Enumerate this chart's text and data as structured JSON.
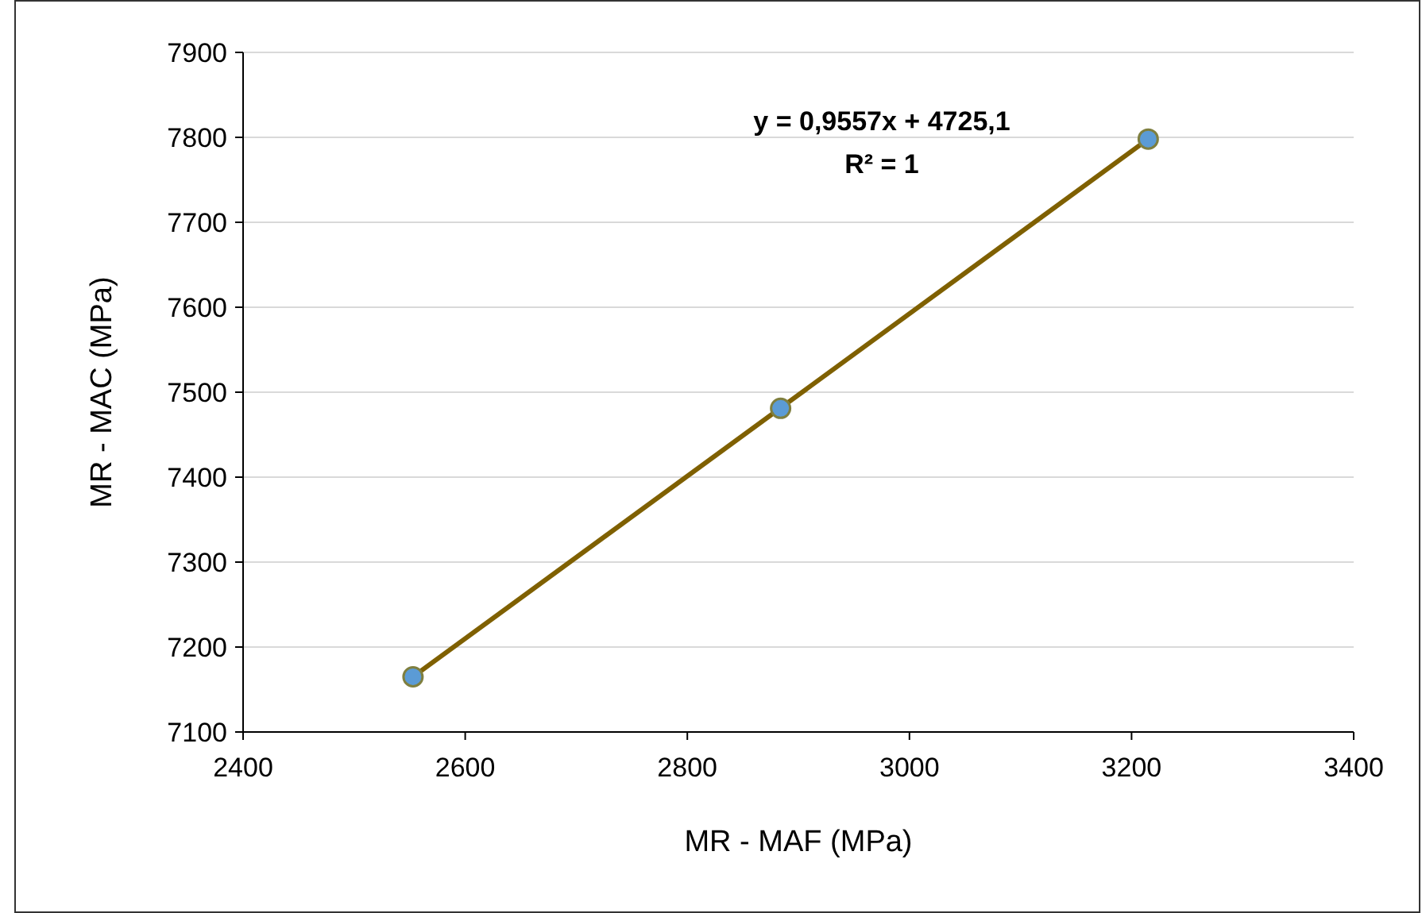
{
  "chart_data": {
    "type": "scatter",
    "xlabel": "MR - MAF (MPa)",
    "ylabel": "MR - MAC (MPa)",
    "xlim": [
      2400,
      3400
    ],
    "xticks": [
      2400,
      2600,
      2800,
      3000,
      3200,
      3400
    ],
    "ylim": [
      7100,
      7900
    ],
    "yticks": [
      7100,
      7200,
      7300,
      7400,
      7500,
      7600,
      7700,
      7800,
      7900
    ],
    "grid": "y",
    "annotations": [
      "y = 0,9557x + 4725,1",
      "R² = 1"
    ],
    "series": [
      {
        "type": "line",
        "color": "#7f6000",
        "x": [
          2553,
          3215
        ],
        "values": [
          7165,
          7798
        ],
        "line_style": "solid"
      },
      {
        "color": "#5b9bd5",
        "marker": "circle",
        "x": [
          2553,
          2884,
          3215
        ],
        "values": [
          7165,
          7481,
          7798
        ]
      }
    ]
  }
}
